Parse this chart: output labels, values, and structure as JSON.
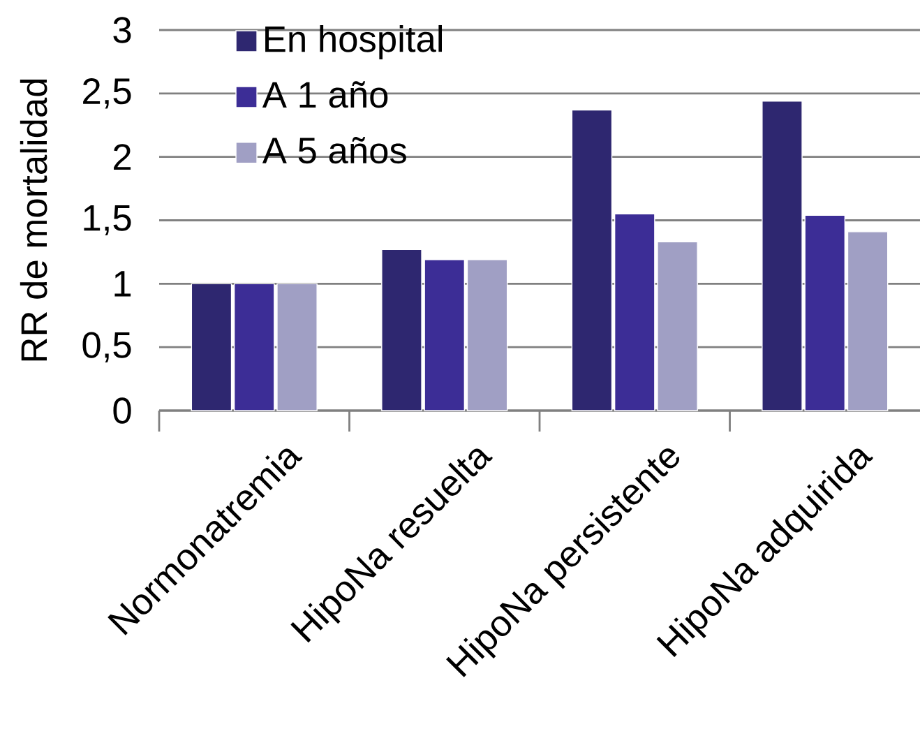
{
  "chart_data": {
    "type": "bar",
    "ylabel": "RR de mortalidad",
    "categories": [
      "Normonatremia",
      "HipoNa resuelta",
      "HipoNa persistente",
      "HipoNa adquirida"
    ],
    "series": [
      {
        "name": "En hospital",
        "color": "#2e2770",
        "values": [
          1,
          1.27,
          2.37,
          2.44
        ]
      },
      {
        "name": "A 1 año",
        "color": "#3c2d96",
        "values": [
          1,
          1.19,
          1.55,
          1.54
        ]
      },
      {
        "name": "A 5 años",
        "color": "#a09fc4",
        "values": [
          1,
          1.19,
          1.33,
          1.41
        ]
      }
    ],
    "ylim": [
      0,
      3
    ],
    "yticks": [
      0,
      {
        "value": 0.5,
        "label": "0,5"
      },
      1,
      {
        "value": 1.5,
        "label": "1,5"
      },
      2,
      {
        "value": 2.5,
        "label": "2,5"
      },
      3
    ],
    "grid": "y",
    "legend": "top left"
  }
}
